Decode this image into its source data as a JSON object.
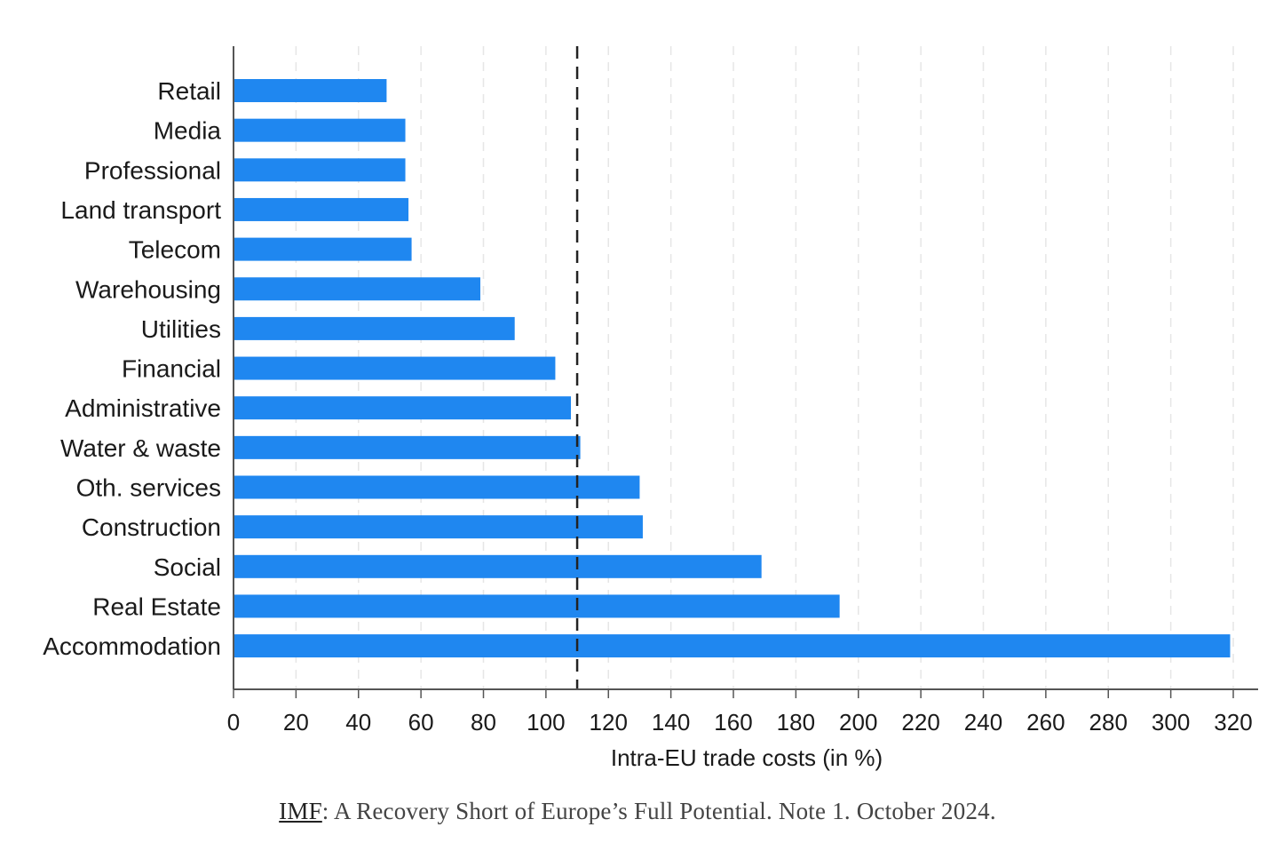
{
  "chart_data": {
    "type": "bar",
    "orientation": "horizontal",
    "categories": [
      "Retail",
      "Media",
      "Professional",
      "Land transport",
      "Telecom",
      "Warehousing",
      "Utilities",
      "Financial",
      "Administrative",
      "Water & waste",
      "Oth. services",
      "Construction",
      "Social",
      "Real Estate",
      "Accommodation"
    ],
    "values": [
      49,
      55,
      55,
      56,
      57,
      79,
      90,
      103,
      108,
      111,
      130,
      131,
      169,
      194,
      319
    ],
    "xlabel": "Intra-EU trade costs (in %)",
    "ylabel": "",
    "xlim": [
      0,
      320
    ],
    "xticks": [
      "0",
      "20",
      "40",
      "60",
      "80",
      "100",
      "120",
      "140",
      "160",
      "180",
      "200",
      "220",
      "240",
      "260",
      "280",
      "300",
      "320"
    ],
    "reference_line": 110,
    "grid": "vertical dashed",
    "bar_color": "#1f87f0",
    "reference_line_color": "#222222",
    "grid_color": "#e6e6e6"
  },
  "caption": {
    "source_link": "IMF",
    "text": ": A Recovery Short of Europe’s Full Potential. Note 1. October 2024."
  }
}
